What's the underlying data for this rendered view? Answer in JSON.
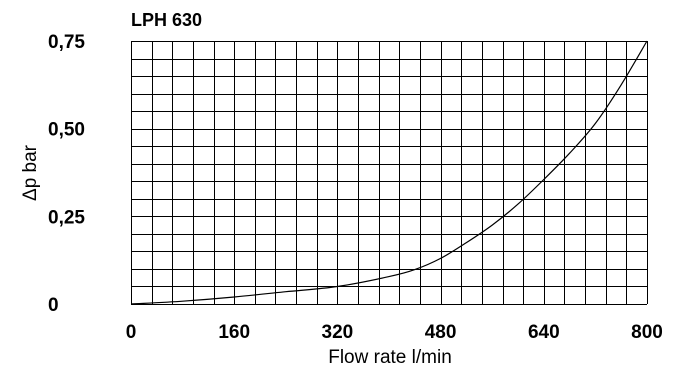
{
  "chart_data": {
    "type": "line",
    "title": "LPH 630",
    "xlabel": "Flow rate l/min",
    "ylabel": "Δp bar",
    "xlim": [
      0,
      800
    ],
    "ylim": [
      0,
      0.75
    ],
    "x_ticks": [
      0,
      160,
      320,
      480,
      640,
      800
    ],
    "x_tick_labels": [
      "0",
      "160",
      "320",
      "480",
      "640",
      "800"
    ],
    "y_ticks": [
      0,
      0.25,
      0.5,
      0.75
    ],
    "y_tick_labels": [
      "0",
      "0,25",
      "0,50",
      "0,75"
    ],
    "grid": true,
    "grid_x_step": 32,
    "grid_y_step": 0.05,
    "series": [
      {
        "x": [
          0,
          80,
          160,
          240,
          320,
          400,
          440,
          480,
          520,
          560,
          600,
          640,
          680,
          720,
          760,
          800
        ],
        "y": [
          0,
          0.008,
          0.02,
          0.035,
          0.05,
          0.078,
          0.098,
          0.13,
          0.175,
          0.225,
          0.285,
          0.355,
          0.43,
          0.515,
          0.625,
          0.75
        ]
      }
    ]
  }
}
